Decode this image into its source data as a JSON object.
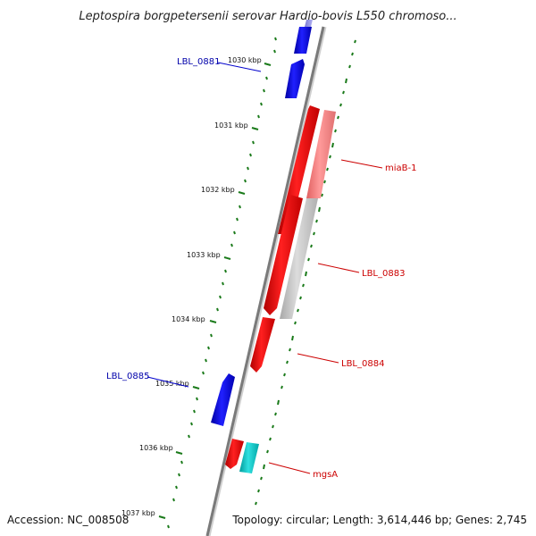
{
  "title": "Leptospira borgpetersenii serovar Hardjo-bovis L550 chromoso...",
  "footer": {
    "accession": "Accession: NC_008508",
    "summary": "Topology: circular; Length: 3,614,446 bp; Genes: 2,745"
  },
  "ticks": [
    "1030 kbp",
    "1031 kbp",
    "1032 kbp",
    "1033 kbp",
    "1034 kbp",
    "1035 kbp",
    "1036 kbp",
    "1037 kbp"
  ],
  "colors": {
    "forward": "#ff0000",
    "reverse": "#0000ff",
    "highlight": "#ff8080",
    "gray": "#c0c0c0",
    "cyan": "#00c8c8",
    "tick": "#1a7a1a",
    "backbone": "#808080",
    "forward_label": "#cc0000",
    "reverse_label": "#0000aa"
  },
  "genes": [
    {
      "name": "LBL_0881",
      "strand": "reverse",
      "labelled": true
    },
    {
      "name": "miaB-1",
      "strand": "forward",
      "labelled": true
    },
    {
      "name": "LBL_0883",
      "strand": "forward",
      "labelled": true
    },
    {
      "name": "LBL_0884",
      "strand": "forward",
      "labelled": true
    },
    {
      "name": "LBL_0885",
      "strand": "reverse",
      "labelled": true
    },
    {
      "name": "mgsA",
      "strand": "forward",
      "labelled": true
    }
  ]
}
